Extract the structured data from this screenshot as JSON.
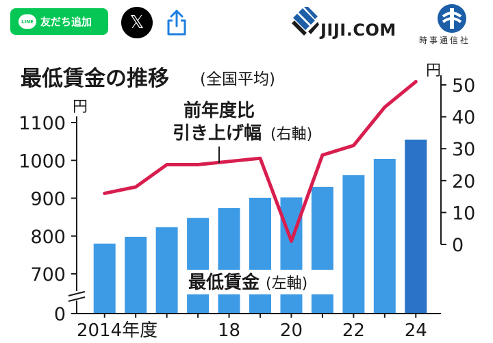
{
  "header": {
    "line_button_label": "友だち追加",
    "line_icon_text": "LINE",
    "x_button_label": "𝕏",
    "logo_text": "JIJI.COM",
    "logo_subtext": "時事通信社"
  },
  "colors": {
    "bar": "#3d9be6",
    "bar_last": "#2a73c8",
    "line": "#d81e4f",
    "line_button": "#06c755"
  },
  "chart_data": {
    "type": "bar",
    "title": "最低賃金の推移",
    "title_suffix": "(全国平均)",
    "categories": [
      "2014",
      "2015",
      "2016",
      "2017",
      "2018",
      "2019",
      "2020",
      "2021",
      "2022",
      "2023",
      "2024"
    ],
    "x_tick_labels": [
      {
        "index": 0,
        "label": "2014年度"
      },
      {
        "index": 4,
        "label": "18"
      },
      {
        "index": 6,
        "label": "20"
      },
      {
        "index": 8,
        "label": "22"
      },
      {
        "index": 10,
        "label": "24"
      }
    ],
    "series": [
      {
        "name": "最低賃金(左軸)",
        "axis": "left",
        "type": "bar",
        "values": [
          780,
          798,
          823,
          848,
          874,
          901,
          902,
          930,
          961,
          1004,
          1055
        ]
      },
      {
        "name": "前年度比引き上げ幅(右軸)",
        "axis": "right",
        "type": "line",
        "values": [
          16,
          18,
          25,
          25,
          26,
          27,
          1,
          28,
          31,
          43,
          51
        ]
      }
    ],
    "left_axis": {
      "unit": "円",
      "ticks": [
        0,
        700,
        800,
        900,
        1000,
        1100
      ],
      "ylim": [
        650,
        1130
      ],
      "break": true
    },
    "right_axis": {
      "unit": "円",
      "ticks": [
        0,
        10,
        20,
        30,
        40,
        50
      ],
      "ylim": [
        0,
        51.5
      ]
    },
    "bar_label_line1": "最低賃金",
    "bar_label_line2": "(左軸)",
    "line_label_line1": "前年度比",
    "line_label_line2": "引き上げ幅",
    "line_label_suffix": "(右軸)",
    "grid": false,
    "legend": "inline annotations"
  }
}
